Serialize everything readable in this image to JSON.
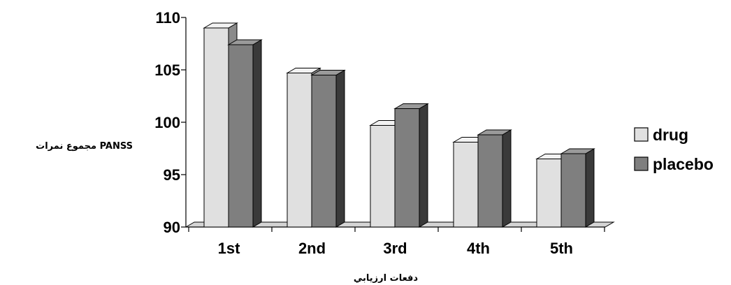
{
  "chart_data": {
    "type": "bar",
    "categories": [
      "1st",
      "2nd",
      "3rd",
      "4th",
      "5th"
    ],
    "series": [
      {
        "name": "drug",
        "values": [
          109.0,
          104.7,
          99.7,
          98.1,
          96.5
        ],
        "color": "#e0e0e0"
      },
      {
        "name": "placebo",
        "values": [
          107.4,
          104.5,
          101.3,
          98.8,
          97.0
        ],
        "color": "#7f7f7f"
      }
    ],
    "xlabel": "دفعات ارزيابي",
    "ylabel": "مجموع نمرات PANSS",
    "ylim": [
      90,
      110
    ],
    "yticks": [
      90,
      95,
      100,
      105,
      110
    ],
    "grid": false,
    "legend": "right",
    "three_d": true
  }
}
